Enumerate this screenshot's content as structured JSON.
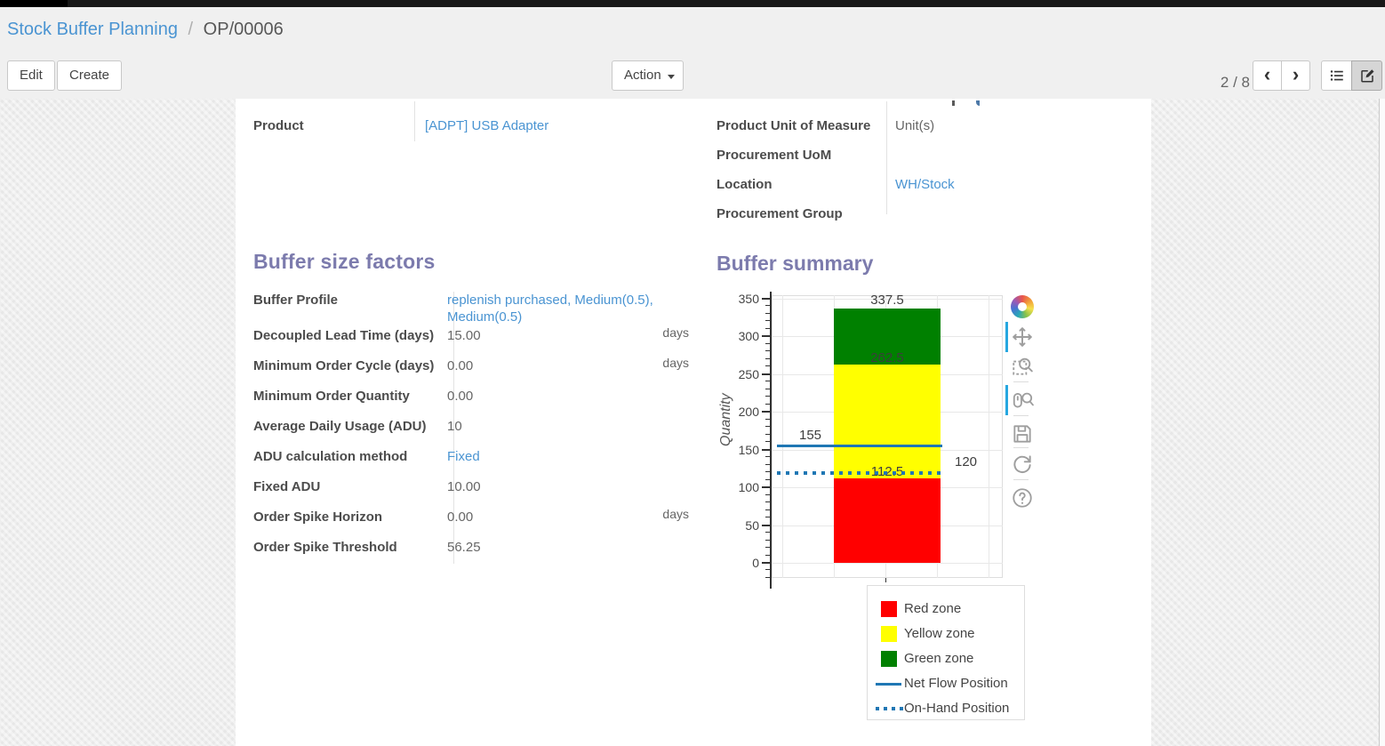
{
  "breadcrumb": {
    "parent": "Stock Buffer Planning",
    "separator": "/",
    "current": "OP/00006"
  },
  "control_panel": {
    "edit_label": "Edit",
    "create_label": "Create",
    "action_label": "Action",
    "pager_value": "2 / 8",
    "nav_icons": [
      "chevron-left-icon",
      "chevron-right-icon"
    ],
    "view_switcher": [
      {
        "name": "list-view",
        "icon": "list-icon",
        "active": false
      },
      {
        "name": "form-view",
        "icon": "form-icon",
        "active": true
      }
    ]
  },
  "sheet": {
    "fields_left": [
      {
        "label": "Product",
        "value": "[ADPT] USB Adapter",
        "link": true
      }
    ],
    "fields_right": [
      {
        "label": "Product Unit of Measure",
        "value": "Unit(s)",
        "link": false
      },
      {
        "label": "Procurement UoM",
        "value": "",
        "link": false
      },
      {
        "label": "Location",
        "value": "WH/Stock",
        "link": true
      },
      {
        "label": "Procurement Group",
        "value": "",
        "link": false
      }
    ],
    "buffer_factors": {
      "title": "Buffer size factors",
      "rows": [
        {
          "label": "Buffer Profile",
          "value": "replenish purchased, Medium(0.5), Medium(0.5)",
          "link": true
        },
        {
          "label": "Decoupled Lead Time (days)",
          "value": "15.00",
          "suffix": "days"
        },
        {
          "label": "Minimum Order Cycle (days)",
          "value": "0.00",
          "suffix": "days"
        },
        {
          "label": "Minimum Order Quantity",
          "value": "0.00"
        },
        {
          "label": "Average Daily Usage (ADU)",
          "value": "10"
        },
        {
          "label": "ADU calculation method",
          "value": "Fixed",
          "link": true
        },
        {
          "label": "Fixed ADU",
          "value": "10.00"
        },
        {
          "label": "Order Spike Horizon",
          "value": "0.00",
          "suffix": "days"
        },
        {
          "label": "Order Spike Threshold",
          "value": "56.25"
        }
      ]
    }
  },
  "chart_data": {
    "type": "bar",
    "title": "Buffer summary",
    "xlabel": "",
    "ylabel": "Quantity",
    "ylim": [
      0,
      350
    ],
    "ytick_step": 50,
    "minor_tick_step": 10,
    "grid": true,
    "categories": [
      ""
    ],
    "series": [
      {
        "name": "Red zone",
        "kind": "stacked-bar",
        "from": 0,
        "to": 112.5,
        "color": "#ff0000",
        "boundary_label": "112.5"
      },
      {
        "name": "Yellow zone",
        "kind": "stacked-bar",
        "from": 112.5,
        "to": 262.5,
        "color": "#ffff00",
        "boundary_label": "262.5"
      },
      {
        "name": "Green zone",
        "kind": "stacked-bar",
        "from": 262.5,
        "to": 337.5,
        "color": "#008000",
        "boundary_label": "337.5"
      },
      {
        "name": "Net Flow Position",
        "kind": "hline",
        "value": 155,
        "line_style": "solid",
        "color": "#1f77b4",
        "label": "155"
      },
      {
        "name": "On-Hand Position",
        "kind": "hline",
        "value": 120,
        "line_style": "dotted",
        "color": "#1f77b4",
        "label": "120"
      }
    ],
    "legend_position": "below-right",
    "legend": [
      {
        "label": "Red zone",
        "swatch": "square",
        "color": "#ff0000"
      },
      {
        "label": "Yellow zone",
        "swatch": "square",
        "color": "#ffff00"
      },
      {
        "label": "Green zone",
        "swatch": "square",
        "color": "#008000"
      },
      {
        "label": "Net Flow Position",
        "swatch": "line",
        "color": "#1f77b4"
      },
      {
        "label": "On-Hand Position",
        "swatch": "dots",
        "color": "#1f77b4"
      }
    ],
    "toolbar": [
      {
        "name": "bokeh-logo",
        "active": false
      },
      {
        "name": "pan-tool",
        "active": true
      },
      {
        "name": "box-zoom-tool",
        "active": false
      },
      {
        "name": "wheel-zoom-tool",
        "active": true
      },
      {
        "name": "save-tool",
        "active": false
      },
      {
        "name": "reset-tool",
        "active": false
      },
      {
        "name": "help-tool",
        "active": false
      }
    ]
  },
  "colors": {
    "accent_purple": "#7c7bad",
    "link_blue": "#4a94d2",
    "line_blue": "#1f77b4",
    "zone_red": "#ff0000",
    "zone_yellow": "#ffff00",
    "zone_green": "#008000",
    "active_tool_blue": "#26a7e0"
  }
}
